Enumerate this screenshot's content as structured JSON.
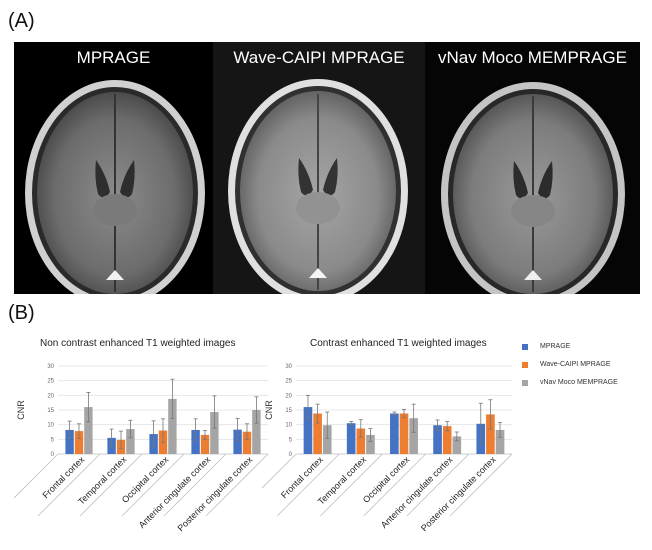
{
  "figure": {
    "panel_a_label": "(A)",
    "panel_b_label": "(B)",
    "mri_panels": [
      {
        "label": "MPRAGE"
      },
      {
        "label": "Wave-CAIPI  MPRAGE"
      },
      {
        "label": "vNav Moco MEMPRAGE"
      }
    ]
  },
  "legend": [
    {
      "name": "MPRAGE",
      "color": "#4472c4"
    },
    {
      "name": "Wave-CAIPI MPRAGE",
      "color": "#ed7d31"
    },
    {
      "name": "vNav Moco MEMPRAGE",
      "color": "#a5a5a5"
    }
  ],
  "chart_data": [
    {
      "type": "bar",
      "title": "Non contrast enhanced T1 weighted images",
      "ylabel": "CNR",
      "ylim": [
        0,
        30
      ],
      "yticks": [
        0,
        5,
        10,
        15,
        20,
        25,
        30
      ],
      "grid": true,
      "categories": [
        "Frontal cortex",
        "Temporal cortex",
        "Occipital cortex",
        "Anterior cingulate cortex",
        "Posterior cingulate cortex"
      ],
      "series": [
        {
          "name": "MPRAGE",
          "color": "#4472c4",
          "values": [
            8.2,
            5.5,
            6.8,
            8.2,
            8.3
          ],
          "errors": [
            3.0,
            3.0,
            4.5,
            3.8,
            3.8
          ]
        },
        {
          "name": "Wave-CAIPI MPRAGE",
          "color": "#ed7d31",
          "values": [
            7.8,
            4.8,
            8.0,
            6.5,
            7.6
          ],
          "errors": [
            2.5,
            3.0,
            4.0,
            1.5,
            2.7
          ]
        },
        {
          "name": "vNav Moco MEMPRAGE",
          "color": "#a5a5a5",
          "values": [
            16.0,
            8.5,
            18.8,
            14.3,
            15.0
          ],
          "errors": [
            5.0,
            3.0,
            6.7,
            5.5,
            4.5
          ]
        }
      ]
    },
    {
      "type": "bar",
      "title": "Contrast enhanced T1 weighted images",
      "ylabel": "CNR",
      "ylim": [
        0,
        30
      ],
      "yticks": [
        0,
        5,
        10,
        15,
        20,
        25,
        30
      ],
      "grid": true,
      "categories": [
        "Frontal cortex",
        "Temporal cortex",
        "Occipital cortex",
        "Anterior cingulate cortex",
        "Posterior cingulate cortex"
      ],
      "series": [
        {
          "name": "MPRAGE",
          "color": "#4472c4",
          "values": [
            16.0,
            10.5,
            13.8,
            9.8,
            10.3
          ],
          "errors": [
            4.0,
            0.6,
            0.5,
            1.8,
            7.0
          ]
        },
        {
          "name": "Wave-CAIPI MPRAGE",
          "color": "#ed7d31",
          "values": [
            13.8,
            8.7,
            13.8,
            9.5,
            13.5
          ],
          "errors": [
            3.2,
            3.0,
            1.4,
            1.6,
            5.0
          ]
        },
        {
          "name": "vNav Moco MEMPRAGE",
          "color": "#a5a5a5",
          "values": [
            9.8,
            6.5,
            12.2,
            6.0,
            8.2
          ],
          "errors": [
            4.5,
            2.2,
            4.8,
            1.5,
            2.5
          ]
        }
      ]
    }
  ]
}
